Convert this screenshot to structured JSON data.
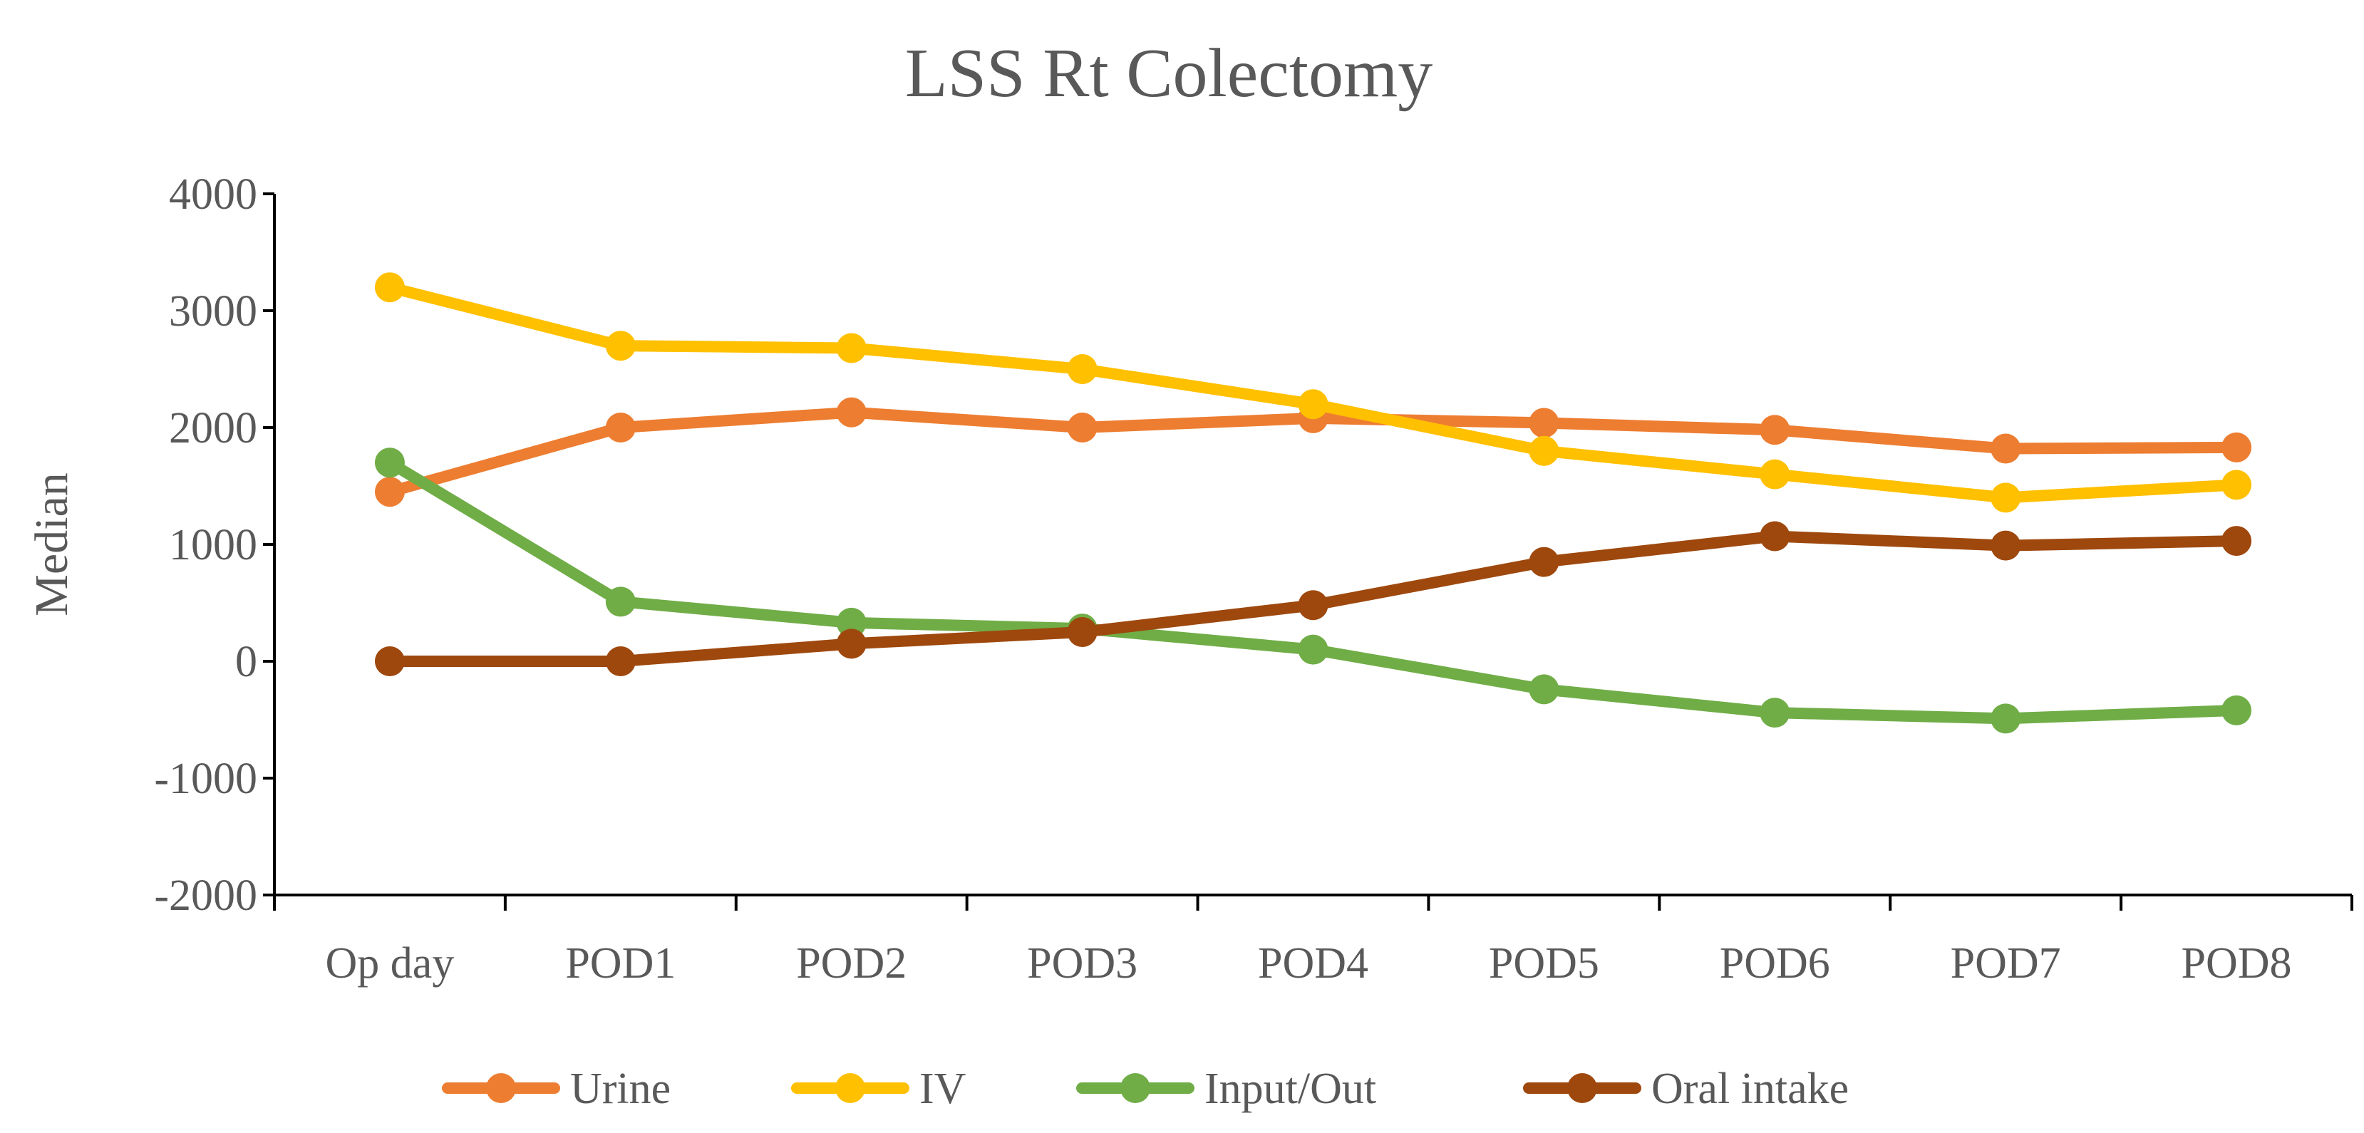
{
  "chart_data": {
    "type": "line",
    "title": "LSS Rt Colectomy",
    "xlabel": "",
    "ylabel": "Median",
    "categories": [
      "Op day",
      "POD1",
      "POD2",
      "POD3",
      "POD4",
      "POD5",
      "POD6",
      "POD7",
      "POD8"
    ],
    "ylim": [
      -2000,
      4000
    ],
    "yticks": [
      4000,
      3000,
      2000,
      1000,
      0,
      -1000,
      -2000
    ],
    "grid": false,
    "legend_position": "bottom",
    "series": [
      {
        "name": "Urine",
        "color": "#ED7D31",
        "values": [
          1450,
          2000,
          2130,
          2000,
          2080,
          2040,
          1980,
          1820,
          1830
        ]
      },
      {
        "name": "IV",
        "color": "#FFC000",
        "values": [
          3200,
          2700,
          2680,
          2500,
          2200,
          1800,
          1600,
          1400,
          1510
        ]
      },
      {
        "name": "Input/Out",
        "color": "#70AD47",
        "values": [
          1700,
          510,
          330,
          280,
          100,
          -240,
          -440,
          -490,
          -420
        ]
      },
      {
        "name": "Oral intake",
        "color": "#9E480E",
        "values": [
          0,
          0,
          150,
          250,
          480,
          850,
          1070,
          990,
          1030
        ]
      }
    ]
  }
}
